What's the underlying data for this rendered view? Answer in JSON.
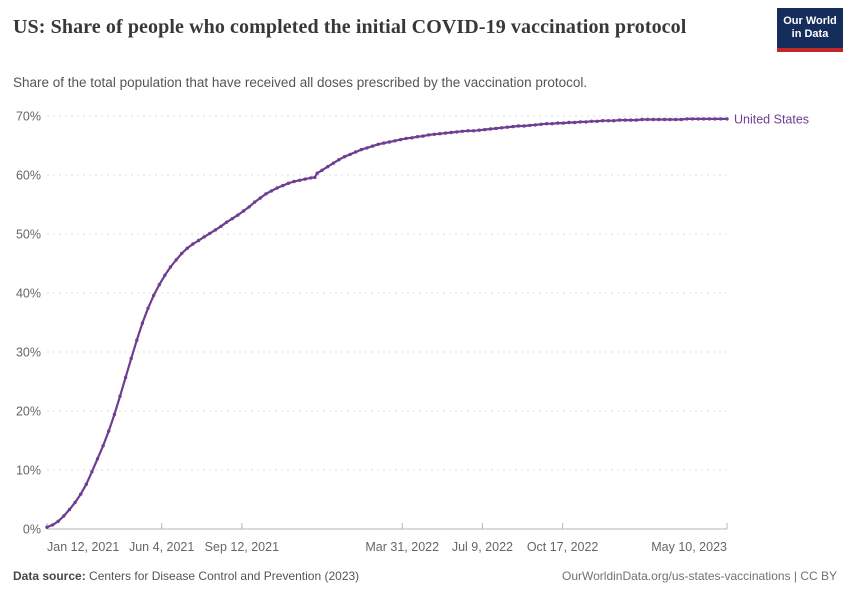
{
  "header": {
    "title": "US: Share of people who completed the initial COVID-19 vaccination protocol",
    "subtitle": "Share of the total population that have received all doses prescribed by the vaccination protocol.",
    "logo": {
      "line1": "Our World",
      "line2": "in Data"
    }
  },
  "chart_data": {
    "type": "line",
    "title": "US: Share of people who completed the initial COVID-19 vaccination protocol",
    "xlabel": "",
    "ylabel": "",
    "ylim": [
      0,
      70
    ],
    "grid": "dashed horizontal gridlines",
    "legend_position": "label at end of line",
    "y_ticks": [
      {
        "value": 0,
        "label": "0%"
      },
      {
        "value": 10,
        "label": "10%"
      },
      {
        "value": 20,
        "label": "20%"
      },
      {
        "value": 30,
        "label": "30%"
      },
      {
        "value": 40,
        "label": "40%"
      },
      {
        "value": 50,
        "label": "50%"
      },
      {
        "value": 60,
        "label": "60%"
      },
      {
        "value": 70,
        "label": "70%"
      }
    ],
    "x_domain_days": [
      0,
      848
    ],
    "x_ticks": [
      {
        "label": "Jan 12, 2021",
        "day": 0,
        "anchor": "start"
      },
      {
        "label": "Jun 4, 2021",
        "day": 143,
        "anchor": "middle"
      },
      {
        "label": "Sep 12, 2021",
        "day": 243,
        "anchor": "middle"
      },
      {
        "label": "Mar 31, 2022",
        "day": 443,
        "anchor": "middle"
      },
      {
        "label": "Jul 9, 2022",
        "day": 543,
        "anchor": "middle"
      },
      {
        "label": "Oct 17, 2022",
        "day": 643,
        "anchor": "middle"
      },
      {
        "label": "May 10, 2023",
        "day": 848,
        "anchor": "end"
      }
    ],
    "series": [
      {
        "name": "United States",
        "color": "#6D3E91",
        "points_day_pct": [
          [
            0,
            0.3
          ],
          [
            7,
            0.7
          ],
          [
            14,
            1.3
          ],
          [
            21,
            2.2
          ],
          [
            28,
            3.3
          ],
          [
            35,
            4.5
          ],
          [
            42,
            5.9
          ],
          [
            49,
            7.6
          ],
          [
            56,
            9.7
          ],
          [
            63,
            11.9
          ],
          [
            70,
            14.1
          ],
          [
            77,
            16.6
          ],
          [
            84,
            19.4
          ],
          [
            91,
            22.5
          ],
          [
            98,
            25.7
          ],
          [
            105,
            28.9
          ],
          [
            112,
            32.0
          ],
          [
            119,
            34.9
          ],
          [
            126,
            37.4
          ],
          [
            133,
            39.6
          ],
          [
            140,
            41.4
          ],
          [
            147,
            43.0
          ],
          [
            154,
            44.4
          ],
          [
            161,
            45.6
          ],
          [
            168,
            46.7
          ],
          [
            175,
            47.6
          ],
          [
            182,
            48.3
          ],
          [
            189,
            48.9
          ],
          [
            196,
            49.5
          ],
          [
            203,
            50.1
          ],
          [
            210,
            50.7
          ],
          [
            217,
            51.3
          ],
          [
            224,
            52.0
          ],
          [
            231,
            52.6
          ],
          [
            238,
            53.2
          ],
          [
            245,
            53.9
          ],
          [
            252,
            54.6
          ],
          [
            259,
            55.4
          ],
          [
            266,
            56.1
          ],
          [
            273,
            56.8
          ],
          [
            280,
            57.3
          ],
          [
            287,
            57.8
          ],
          [
            294,
            58.2
          ],
          [
            301,
            58.6
          ],
          [
            308,
            58.9
          ],
          [
            315,
            59.1
          ],
          [
            322,
            59.3
          ],
          [
            329,
            59.5
          ],
          [
            334,
            59.6
          ],
          [
            337,
            60.3
          ],
          [
            343,
            60.8
          ],
          [
            350,
            61.4
          ],
          [
            357,
            62.0
          ],
          [
            364,
            62.6
          ],
          [
            371,
            63.1
          ],
          [
            378,
            63.5
          ],
          [
            385,
            63.9
          ],
          [
            392,
            64.3
          ],
          [
            399,
            64.6
          ],
          [
            406,
            64.9
          ],
          [
            413,
            65.2
          ],
          [
            420,
            65.4
          ],
          [
            427,
            65.6
          ],
          [
            434,
            65.8
          ],
          [
            441,
            66.0
          ],
          [
            448,
            66.2
          ],
          [
            455,
            66.3
          ],
          [
            462,
            66.5
          ],
          [
            469,
            66.6
          ],
          [
            476,
            66.8
          ],
          [
            483,
            66.9
          ],
          [
            490,
            67.0
          ],
          [
            497,
            67.1
          ],
          [
            504,
            67.2
          ],
          [
            511,
            67.3
          ],
          [
            518,
            67.4
          ],
          [
            525,
            67.5
          ],
          [
            532,
            67.5
          ],
          [
            539,
            67.6
          ],
          [
            546,
            67.7
          ],
          [
            553,
            67.8
          ],
          [
            560,
            67.9
          ],
          [
            567,
            68.0
          ],
          [
            574,
            68.1
          ],
          [
            581,
            68.2
          ],
          [
            588,
            68.3
          ],
          [
            595,
            68.3
          ],
          [
            602,
            68.4
          ],
          [
            609,
            68.5
          ],
          [
            616,
            68.6
          ],
          [
            623,
            68.7
          ],
          [
            630,
            68.7
          ],
          [
            637,
            68.8
          ],
          [
            644,
            68.8
          ],
          [
            651,
            68.9
          ],
          [
            658,
            68.9
          ],
          [
            665,
            69.0
          ],
          [
            672,
            69.0
          ],
          [
            679,
            69.1
          ],
          [
            686,
            69.1
          ],
          [
            693,
            69.2
          ],
          [
            700,
            69.2
          ],
          [
            707,
            69.2
          ],
          [
            714,
            69.3
          ],
          [
            721,
            69.3
          ],
          [
            728,
            69.3
          ],
          [
            735,
            69.3
          ],
          [
            742,
            69.4
          ],
          [
            749,
            69.4
          ],
          [
            756,
            69.4
          ],
          [
            763,
            69.4
          ],
          [
            770,
            69.4
          ],
          [
            777,
            69.4
          ],
          [
            784,
            69.4
          ],
          [
            791,
            69.4
          ],
          [
            798,
            69.5
          ],
          [
            805,
            69.5
          ],
          [
            812,
            69.5
          ],
          [
            819,
            69.5
          ],
          [
            826,
            69.5
          ],
          [
            833,
            69.5
          ],
          [
            840,
            69.5
          ],
          [
            848,
            69.5
          ]
        ]
      }
    ]
  },
  "footer": {
    "source_label": "Data source:",
    "source_text": " Centers for Disease Control and Prevention (2023)",
    "attribution": "OurWorldinData.org/us-states-vaccinations | CC BY"
  },
  "colors": {
    "accent": "#6D3E91",
    "title_text": "#383838",
    "subtitle_text": "#555555",
    "tick_text": "#666666",
    "grid": "#DDDDDD",
    "axis": "#B5B5B5",
    "logo_bg": "#142D5A",
    "logo_bar": "#C0262C"
  }
}
